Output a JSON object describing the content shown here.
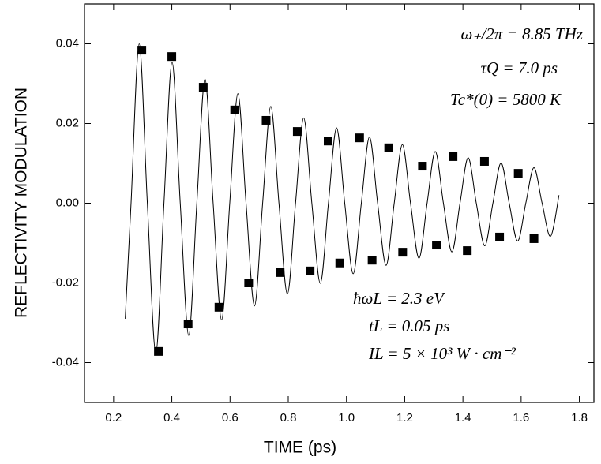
{
  "chart_data": {
    "type": "scatter",
    "x_label": "TIME (ps)",
    "y_label": "REFLECTIVITY MODULATION",
    "xlim": [
      0.1,
      1.85
    ],
    "ylim": [
      -0.05,
      0.05
    ],
    "xticks": [
      0.2,
      0.4,
      0.6,
      0.8,
      {
        "value": 1.0,
        "label": "1.0"
      },
      1.2,
      1.4,
      1.6,
      1.8
    ],
    "yticks": [
      -0.04,
      -0.02,
      {
        "value": 0,
        "label": "0.00"
      },
      0.02,
      0.04
    ],
    "annotations": [
      "ω₊/2π = 8.85 THz",
      "τQ = 7.0 ps",
      "Tc*(0) = 5800 K",
      "ħωL = 2.3 eV",
      "tL = 0.05 ps",
      "IL = 5 × 10³ W · cm⁻²"
    ],
    "series": [
      {
        "type": "scatter",
        "color": "#000000",
        "x": [
          0.297,
          0.354,
          0.4,
          0.456,
          0.508,
          0.562,
          0.616,
          0.664,
          0.724,
          0.772,
          0.831,
          0.875,
          0.937,
          0.977,
          1.045,
          1.088,
          1.145,
          1.193,
          1.261,
          1.309,
          1.366,
          1.415,
          1.474,
          1.526,
          1.59,
          1.644
        ],
        "values": [
          0.0384,
          -0.0372,
          0.0368,
          -0.0303,
          0.0291,
          -0.0261,
          0.0234,
          -0.02,
          0.0208,
          -0.0174,
          0.018,
          -0.017,
          0.0156,
          -0.015,
          0.0164,
          -0.0143,
          0.0139,
          -0.0123,
          0.0093,
          -0.0105,
          0.0117,
          -0.0119,
          0.0105,
          -0.0085,
          0.0075,
          -0.0089
        ]
      },
      {
        "type": "line",
        "color": "#000000",
        "x": [
          0.24,
          0.26,
          0.288,
          0.316,
          0.345,
          0.373,
          0.401,
          0.429,
          0.458,
          0.486,
          0.514,
          0.542,
          0.571,
          0.599,
          0.627,
          0.655,
          0.684,
          0.712,
          0.74,
          0.768,
          0.797,
          0.825,
          0.853,
          0.881,
          0.91,
          0.938,
          0.966,
          0.994,
          1.023,
          1.051,
          1.079,
          1.107,
          1.136,
          1.164,
          1.192,
          1.22,
          1.249,
          1.277,
          1.305,
          1.333,
          1.362,
          1.39,
          1.418,
          1.446,
          1.475,
          1.503,
          1.531,
          1.559,
          1.588,
          1.616,
          1.644,
          1.672,
          1.701,
          1.73
        ],
        "values": [
          -0.029,
          0,
          0.04,
          0,
          -0.0376,
          0,
          0.0354,
          0,
          -0.0332,
          0,
          0.0312,
          0,
          -0.0293,
          0,
          0.0275,
          0,
          -0.0258,
          0,
          0.0243,
          0,
          -0.0228,
          0,
          0.0214,
          0,
          -0.0201,
          0,
          0.0189,
          0,
          -0.0177,
          0,
          0.0166,
          0,
          -0.0156,
          0,
          0.0147,
          0,
          -0.0138,
          0,
          0.013,
          0,
          -0.0122,
          0,
          0.0114,
          0,
          -0.0107,
          0,
          0.0101,
          0,
          -0.0095,
          0,
          0.0089,
          0,
          -0.0083,
          0.002
        ]
      }
    ]
  }
}
